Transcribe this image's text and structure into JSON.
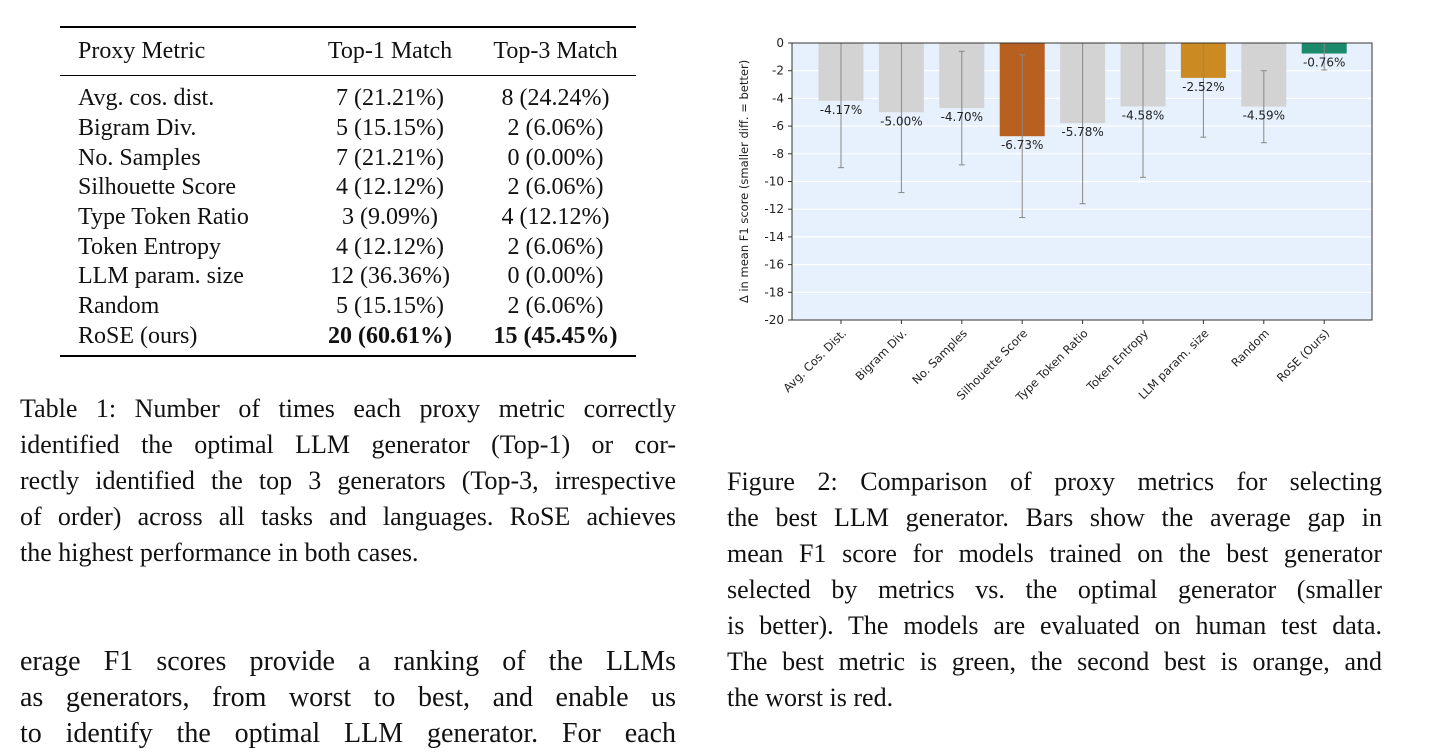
{
  "table": {
    "headers": [
      "Proxy Metric",
      "Top-1 Match",
      "Top-3 Match"
    ],
    "rows": [
      [
        "Avg. cos. dist.",
        "7 (21.21%)",
        "8 (24.24%)"
      ],
      [
        "Bigram Div.",
        "5 (15.15%)",
        "2 (6.06%)"
      ],
      [
        "No. Samples",
        "7 (21.21%)",
        "0 (0.00%)"
      ],
      [
        "Silhouette Score",
        "4 (12.12%)",
        "2 (6.06%)"
      ],
      [
        "Type Token Ratio",
        "3 (9.09%)",
        "4 (12.12%)"
      ],
      [
        "Token Entropy",
        "4 (12.12%)",
        "2 (6.06%)"
      ],
      [
        "LLM param. size",
        "12 (36.36%)",
        "0 (0.00%)"
      ],
      [
        "Random",
        "5 (15.15%)",
        "2 (6.06%)"
      ],
      [
        "RoSE (ours)",
        "20 (60.61%)",
        "15 (45.45%)"
      ]
    ]
  },
  "table_caption": [
    "Table 1: Number of times each proxy metric correctly",
    "identified the optimal LLM generator (Top-1) or cor-",
    "rectly identified the top 3 generators (Top-3, irrespective",
    "of order) across all tasks and languages. RoSE achieves",
    "the highest performance in both cases."
  ],
  "body_text": [
    "erage F1 scores provide a ranking of the LLMs",
    "as generators, from worst to best, and enable us",
    "to identify the optimal LLM generator. For each"
  ],
  "figure_caption": [
    "Figure 2: Comparison of proxy metrics for selecting",
    "the best LLM generator. Bars show the average gap in",
    "mean F1 score for models trained on the best generator",
    "selected by metrics vs. the optimal generator (smaller",
    "is better). The models are evaluated on human test data.",
    "The best metric is green, the second best is orange, and",
    "the worst is red."
  ],
  "chart_data": {
    "type": "bar",
    "title": "",
    "xlabel": "",
    "ylabel": "Δ in mean F1 score (smaller diff. = better)",
    "ylim": [
      -20,
      0
    ],
    "yticks": [
      0,
      -2,
      -4,
      -6,
      -8,
      -10,
      -12,
      -14,
      -16,
      -18,
      -20
    ],
    "grid": true,
    "categories": [
      "Avg. Cos. Dist.",
      "Bigram Div.",
      "No. Samples",
      "Silhouette Score",
      "Type Token Ratio",
      "Token Entropy",
      "LLM param. size",
      "Random",
      "RoSE (Ours)"
    ],
    "values": [
      -4.17,
      -5.0,
      -4.7,
      -6.73,
      -5.78,
      -4.58,
      -2.52,
      -4.59,
      -0.76
    ],
    "labels": [
      "-4.17%",
      "-5.00%",
      "-4.70%",
      "-6.73%",
      "-5.78%",
      "-4.58%",
      "-2.52%",
      "-4.59%",
      "-0.76%"
    ],
    "error_low": [
      -9.0,
      -10.8,
      -8.8,
      -12.6,
      -11.6,
      -9.7,
      -6.8,
      -7.2,
      -1.95
    ],
    "error_high": [
      0,
      0,
      -0.6,
      -0.85,
      0,
      0,
      0,
      -2.0,
      0
    ],
    "colors": [
      "#d3d3d3",
      "#d3d3d3",
      "#d3d3d3",
      "#b8601f",
      "#d3d3d3",
      "#d3d3d3",
      "#cc8b22",
      "#d3d3d3",
      "#1a8a6a"
    ],
    "background": "#e6f1fd"
  }
}
